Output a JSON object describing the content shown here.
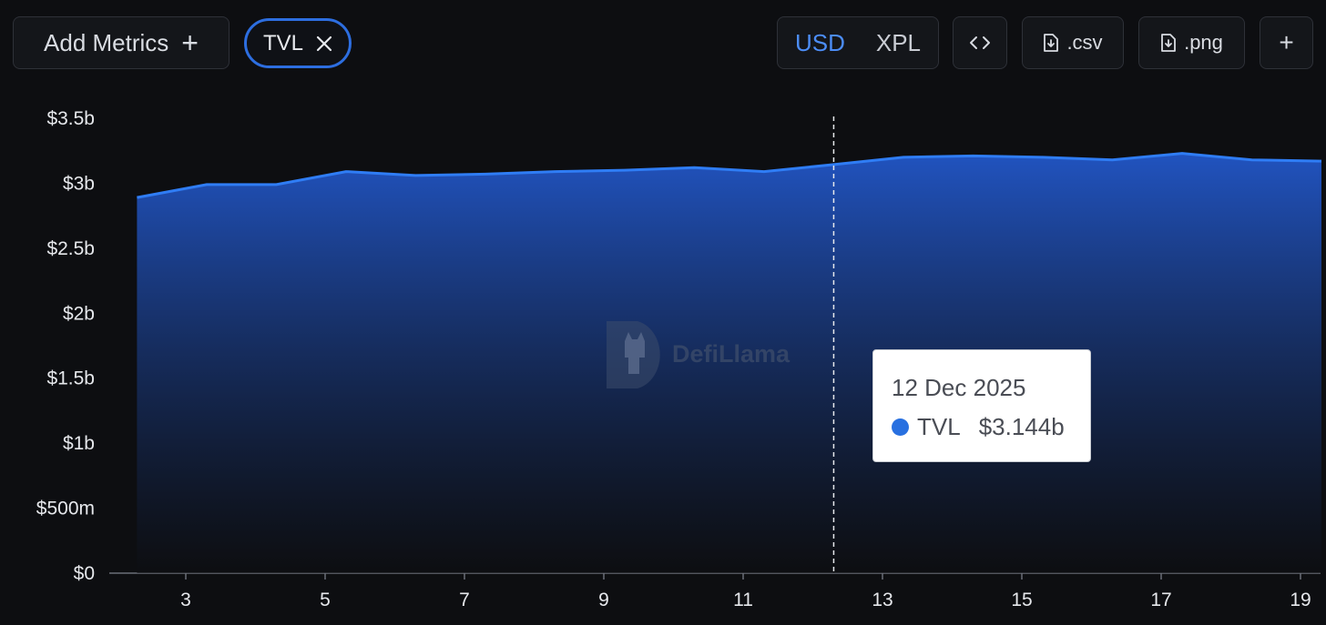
{
  "toolbar": {
    "add_metrics_label": "Add Metrics",
    "add_icon": "plus-icon",
    "metric_chip_label": "TVL",
    "remove_icon": "close-icon",
    "currency_options": [
      "USD",
      "XPL"
    ],
    "currency_selected": "USD",
    "embed_icon": "code-icon",
    "csv_label": ".csv",
    "png_label": ".png",
    "download_icon": "file-download-icon",
    "more_label": "+"
  },
  "watermark": {
    "text": "DefiLlama"
  },
  "tooltip": {
    "date": "12 Dec 2025",
    "series": "TVL",
    "value": "$3.144b"
  },
  "colors": {
    "background": "#0d0e11",
    "accent": "#2d6ee0",
    "line": "#2f7df5",
    "area_top": "#2257c9",
    "area_bottom": "#0d0e11"
  },
  "chart_data": {
    "type": "area",
    "series": [
      {
        "name": "TVL",
        "x": [
          2.3,
          3.3,
          4.3,
          5.3,
          6.3,
          7.3,
          8.3,
          9.3,
          10.3,
          11.3,
          12.3,
          13.3,
          14.3,
          15.3,
          16.3,
          17.3,
          18.3,
          19.3
        ],
        "values": [
          2.89,
          2.99,
          2.99,
          3.09,
          3.06,
          3.07,
          3.09,
          3.1,
          3.12,
          3.09,
          3.144,
          3.2,
          3.21,
          3.2,
          3.18,
          3.23,
          3.18,
          3.17
        ]
      }
    ],
    "x_ticks": [
      "3",
      "5",
      "7",
      "9",
      "11",
      "13",
      "15",
      "17",
      "19"
    ],
    "x_tick_values": [
      3,
      5,
      7,
      9,
      11,
      13,
      15,
      17,
      19
    ],
    "y_ticks": [
      "$0",
      "$500m",
      "$1b",
      "$1.5b",
      "$2b",
      "$2.5b",
      "$3b",
      "$3.5b"
    ],
    "y_tick_values": [
      0,
      0.5,
      1,
      1.5,
      2,
      2.5,
      3,
      3.5
    ],
    "ylim": [
      0,
      3.5
    ],
    "xlim": [
      1.0,
      19.35
    ],
    "hover_x": 12.3,
    "grid": false,
    "legend": "none"
  }
}
